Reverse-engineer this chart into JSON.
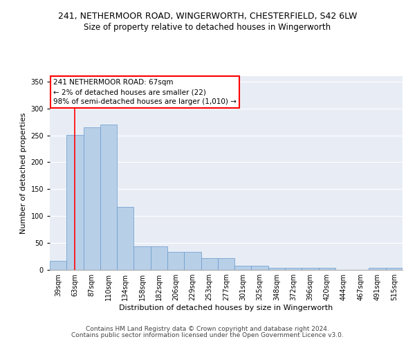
{
  "title_line1": "241, NETHERMOOR ROAD, WINGERWORTH, CHESTERFIELD, S42 6LW",
  "title_line2": "Size of property relative to detached houses in Wingerworth",
  "xlabel": "Distribution of detached houses by size in Wingerworth",
  "ylabel": "Number of detached properties",
  "bar_labels": [
    "39sqm",
    "63sqm",
    "87sqm",
    "110sqm",
    "134sqm",
    "158sqm",
    "182sqm",
    "206sqm",
    "229sqm",
    "253sqm",
    "277sqm",
    "301sqm",
    "325sqm",
    "348sqm",
    "372sqm",
    "396sqm",
    "420sqm",
    "444sqm",
    "467sqm",
    "491sqm",
    "515sqm"
  ],
  "bar_values": [
    17,
    251,
    265,
    270,
    117,
    44,
    44,
    34,
    34,
    22,
    22,
    8,
    8,
    4,
    4,
    4,
    4,
    0,
    0,
    4,
    4
  ],
  "bar_color": "#b8cfe8",
  "bar_edge_color": "#6699cc",
  "red_line_x": 1.0,
  "annotation_line1": "241 NETHERMOOR ROAD: 67sqm",
  "annotation_line2": "← 2% of detached houses are smaller (22)",
  "annotation_line3": "98% of semi-detached houses are larger (1,010) →",
  "annotation_box_color": "white",
  "annotation_box_edge_color": "red",
  "ylim": [
    0,
    360
  ],
  "yticks": [
    0,
    50,
    100,
    150,
    200,
    250,
    300,
    350
  ],
  "background_color": "#e8edf5",
  "grid_color": "white",
  "footer_line1": "Contains HM Land Registry data © Crown copyright and database right 2024.",
  "footer_line2": "Contains public sector information licensed under the Open Government Licence v3.0.",
  "title_fontsize": 9,
  "subtitle_fontsize": 8.5,
  "axis_label_fontsize": 8,
  "tick_fontsize": 7,
  "annotation_fontsize": 7.5,
  "footer_fontsize": 6.5
}
